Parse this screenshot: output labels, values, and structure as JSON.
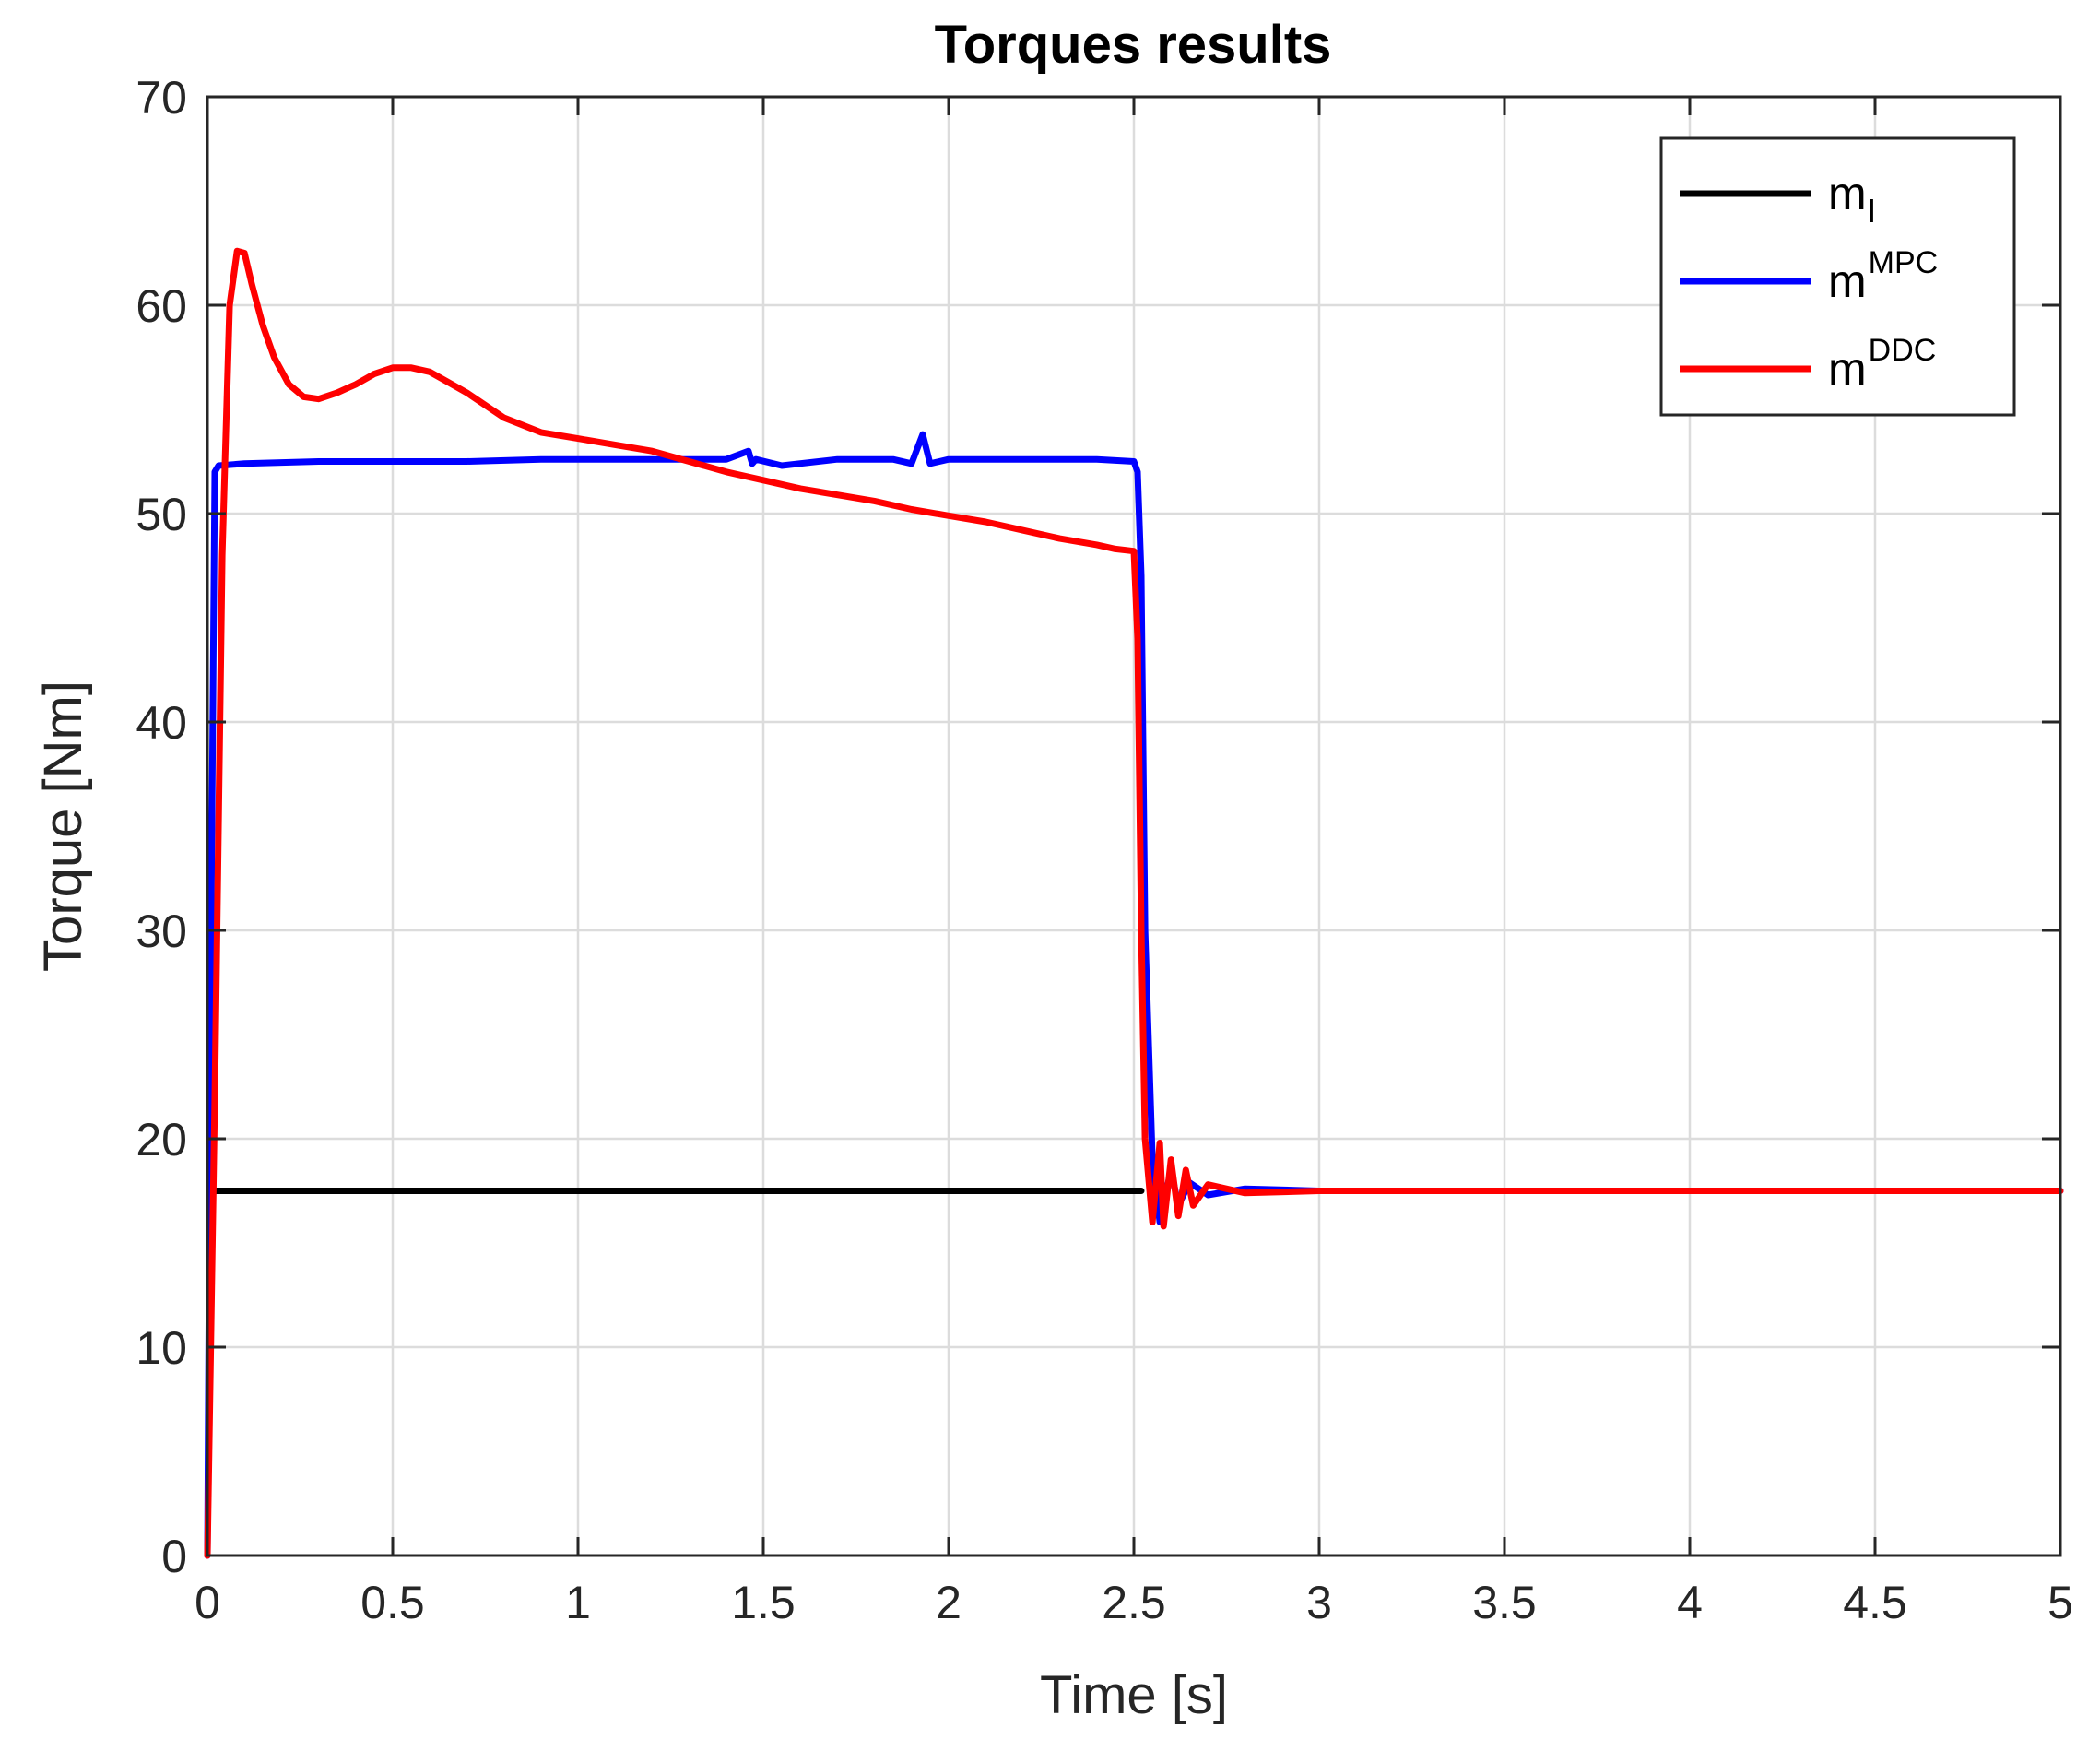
{
  "chart_data": {
    "type": "line",
    "title": "Torques results",
    "xlabel": "Time [s]",
    "ylabel": "Torque [Nm]",
    "xlim": [
      0,
      5
    ],
    "ylim": [
      0,
      70
    ],
    "grid": true,
    "legend_position": "top-right",
    "x_ticks": [
      0,
      0.5,
      1,
      1.5,
      2,
      2.5,
      3,
      3.5,
      4,
      4.5,
      5
    ],
    "x_tick_labels": [
      "0",
      "0.5",
      "1",
      "1.5",
      "2",
      "2.5",
      "3",
      "3.5",
      "4",
      "4.5",
      "5"
    ],
    "y_ticks": [
      0,
      10,
      20,
      30,
      40,
      50,
      60,
      70
    ],
    "y_tick_labels": [
      "0",
      "10",
      "20",
      "30",
      "40",
      "50",
      "60",
      "70"
    ],
    "series": [
      {
        "name": "m_l",
        "legend_base": "m",
        "legend_sub": "l",
        "color": "#000000",
        "x": [
          0.02,
          2.52
        ],
        "y": [
          17.5,
          17.5
        ]
      },
      {
        "name": "m^MPC",
        "legend_base": "m",
        "legend_sup": "MPC",
        "color": "#0000ff",
        "x": [
          0.0,
          0.01,
          0.02,
          0.03,
          0.1,
          0.3,
          0.5,
          0.7,
          0.9,
          1.1,
          1.25,
          1.4,
          1.46,
          1.47,
          1.48,
          1.55,
          1.7,
          1.85,
          1.9,
          1.93,
          1.95,
          2.0,
          2.2,
          2.4,
          2.5,
          2.51,
          2.52,
          2.53,
          2.55,
          2.57,
          2.6,
          2.62,
          2.65,
          2.7,
          2.8,
          3.0,
          3.2,
          3.4,
          3.6,
          3.8,
          4.0,
          4.2,
          4.4,
          4.6,
          4.8,
          5.0
        ],
        "y": [
          0.0,
          30.0,
          52.0,
          52.3,
          52.4,
          52.5,
          52.5,
          52.5,
          52.6,
          52.6,
          52.6,
          52.6,
          53.0,
          52.4,
          52.6,
          52.3,
          52.6,
          52.6,
          52.4,
          53.8,
          52.4,
          52.6,
          52.6,
          52.6,
          52.5,
          52.0,
          47.0,
          30.0,
          19.0,
          16.0,
          18.5,
          16.8,
          17.9,
          17.3,
          17.6,
          17.5,
          17.5,
          17.5,
          17.5,
          17.5,
          17.5,
          17.5,
          17.5,
          17.5,
          17.5,
          17.5
        ]
      },
      {
        "name": "m^DDC",
        "legend_base": "m",
        "legend_sup": "DDC",
        "color": "#ff0000",
        "x": [
          0.0,
          0.02,
          0.04,
          0.06,
          0.08,
          0.1,
          0.12,
          0.15,
          0.18,
          0.22,
          0.26,
          0.3,
          0.35,
          0.4,
          0.45,
          0.5,
          0.55,
          0.6,
          0.65,
          0.7,
          0.8,
          0.9,
          1.0,
          1.1,
          1.2,
          1.3,
          1.4,
          1.5,
          1.6,
          1.7,
          1.8,
          1.9,
          2.0,
          2.1,
          2.2,
          2.3,
          2.4,
          2.45,
          2.5,
          2.51,
          2.52,
          2.53,
          2.55,
          2.57,
          2.58,
          2.6,
          2.62,
          2.64,
          2.66,
          2.7,
          2.8,
          3.0,
          3.2,
          3.4,
          3.6,
          3.8,
          4.0,
          4.2,
          4.4,
          4.6,
          4.8,
          5.0
        ],
        "y": [
          0.0,
          22.0,
          48.0,
          60.0,
          62.6,
          62.5,
          61.0,
          59.0,
          57.5,
          56.2,
          55.6,
          55.5,
          55.8,
          56.2,
          56.7,
          57.0,
          57.0,
          56.8,
          56.3,
          55.8,
          54.6,
          53.9,
          53.6,
          53.3,
          53.0,
          52.5,
          52.0,
          51.6,
          51.2,
          50.9,
          50.6,
          50.2,
          49.9,
          49.6,
          49.2,
          48.8,
          48.5,
          48.3,
          48.2,
          44.0,
          30.0,
          20.0,
          16.0,
          19.8,
          15.8,
          19.0,
          16.3,
          18.5,
          16.8,
          17.8,
          17.4,
          17.5,
          17.5,
          17.5,
          17.5,
          17.5,
          17.5,
          17.5,
          17.5,
          17.5,
          17.5,
          17.5
        ]
      }
    ]
  }
}
